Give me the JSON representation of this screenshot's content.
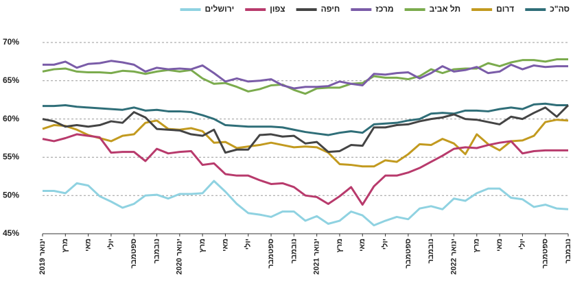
{
  "chart_data": {
    "type": "line",
    "categories": [
      "ינואר 2019",
      null,
      "מרץ",
      null,
      "מאי",
      null,
      "יולי",
      null,
      "ספטמבר",
      null,
      "נובמבר",
      null,
      "ינואר 2020",
      null,
      "מרץ",
      null,
      "מאי",
      null,
      "יולי",
      null,
      "ספטמבר",
      null,
      "נובמבר",
      null,
      "ינואר 2021",
      null,
      "מרץ",
      null,
      "מאי",
      null,
      "יולי",
      null,
      "ספטמבר",
      null,
      "נובמבר",
      null,
      "ינואר 2022",
      null,
      "מרץ",
      null,
      "מאי",
      null,
      "יולי",
      null,
      "ספטמבר",
      null,
      "נובמבר"
    ],
    "series": [
      {
        "name": "סה\"כ",
        "color": "#2f6e78",
        "values": [
          61.7,
          61.7,
          61.8,
          61.6,
          61.5,
          61.4,
          61.3,
          61.2,
          61.5,
          61.1,
          61.2,
          61.0,
          61.0,
          60.9,
          60.5,
          60.0,
          59.2,
          59.1,
          59.0,
          59.0,
          59.0,
          58.9,
          58.6,
          58.3,
          58.1,
          57.9,
          58.2,
          58.4,
          58.2,
          59.3,
          59.4,
          59.5,
          59.8,
          60.0,
          60.7,
          60.8,
          60.7,
          61.1,
          61.1,
          61.0,
          61.3,
          61.5,
          61.3,
          61.9,
          62.0,
          61.8,
          61.8
        ]
      },
      {
        "name": "דרום",
        "color": "#c29a1f",
        "values": [
          58.7,
          59.2,
          59.1,
          58.6,
          57.9,
          57.5,
          57.1,
          57.8,
          58.0,
          59.5,
          59.8,
          58.7,
          58.6,
          58.8,
          58.4,
          56.9,
          57.0,
          56.2,
          56.4,
          56.6,
          56.9,
          56.6,
          56.3,
          56.4,
          56.3,
          55.6,
          54.1,
          54.0,
          53.8,
          53.8,
          54.6,
          54.4,
          55.4,
          56.7,
          56.6,
          57.4,
          56.8,
          55.4,
          58.0,
          56.7,
          55.9,
          57.1,
          57.2,
          57.8,
          59.6,
          59.9,
          59.8
        ]
      },
      {
        "name": "תל אביב",
        "color": "#7bab4d",
        "values": [
          66.2,
          66.5,
          66.6,
          66.2,
          66.1,
          66.1,
          66.0,
          66.3,
          66.2,
          65.9,
          66.2,
          66.4,
          66.2,
          66.4,
          65.3,
          64.6,
          64.7,
          64.2,
          63.6,
          63.9,
          64.4,
          64.5,
          63.8,
          63.3,
          64.0,
          64.1,
          64.1,
          64.6,
          64.7,
          65.6,
          65.4,
          65.4,
          65.2,
          65.6,
          66.5,
          66.0,
          66.5,
          66.6,
          66.6,
          67.3,
          66.9,
          67.4,
          67.7,
          67.7,
          67.5,
          67.8,
          67.8
        ]
      },
      {
        "name": "מרכז",
        "color": "#7a5ca8",
        "values": [
          67.1,
          67.1,
          67.5,
          66.7,
          67.2,
          67.3,
          67.6,
          67.4,
          67.1,
          66.2,
          66.7,
          66.5,
          66.6,
          66.5,
          67.0,
          66.0,
          64.9,
          65.3,
          64.9,
          65.0,
          65.2,
          64.4,
          64.0,
          64.2,
          64.2,
          64.3,
          64.9,
          64.6,
          64.4,
          65.9,
          65.8,
          66.0,
          66.1,
          65.3,
          66.0,
          66.9,
          66.2,
          66.4,
          66.8,
          66.0,
          66.2,
          67.1,
          66.5,
          67.0,
          66.8,
          66.9,
          66.9
        ]
      },
      {
        "name": "חיפה",
        "color": "#444444",
        "values": [
          60.0,
          59.7,
          59.0,
          59.2,
          59.0,
          59.2,
          59.7,
          59.5,
          60.9,
          60.2,
          58.7,
          58.6,
          58.5,
          58.0,
          57.8,
          58.6,
          55.6,
          56.0,
          56.0,
          57.9,
          58.0,
          57.7,
          57.8,
          56.8,
          57.0,
          55.7,
          55.8,
          56.6,
          56.5,
          58.9,
          58.9,
          59.2,
          59.3,
          59.7,
          60.0,
          60.2,
          60.6,
          60.0,
          59.9,
          59.6,
          59.3,
          60.3,
          60.0,
          60.8,
          61.5,
          60.3,
          61.8
        ]
      },
      {
        "name": "צפון",
        "color": "#b83a6c",
        "values": [
          57.4,
          57.1,
          57.5,
          58.0,
          57.8,
          57.6,
          55.6,
          55.7,
          55.7,
          54.5,
          56.1,
          55.5,
          55.7,
          55.8,
          54.0,
          54.2,
          52.8,
          52.6,
          52.6,
          52.0,
          51.5,
          51.6,
          51.1,
          50.0,
          49.8,
          48.9,
          49.9,
          51.1,
          48.8,
          51.2,
          52.6,
          52.6,
          53.0,
          53.6,
          54.4,
          55.2,
          56.1,
          56.3,
          56.2,
          56.6,
          56.9,
          57.1,
          55.5,
          55.8,
          55.9,
          55.9,
          55.9
        ]
      },
      {
        "name": "ירושלים",
        "color": "#8fd2e1",
        "values": [
          50.6,
          50.6,
          50.3,
          51.6,
          51.3,
          49.9,
          49.2,
          48.4,
          48.9,
          50.0,
          50.1,
          49.6,
          50.2,
          50.2,
          50.3,
          51.9,
          50.5,
          48.9,
          47.7,
          47.5,
          47.2,
          47.9,
          47.9,
          46.7,
          47.3,
          46.3,
          46.7,
          47.9,
          47.4,
          46.1,
          46.7,
          47.2,
          46.9,
          48.3,
          48.6,
          48.2,
          49.6,
          49.3,
          50.3,
          50.9,
          50.9,
          49.7,
          49.5,
          48.5,
          48.8,
          48.3,
          48.2
        ]
      }
    ],
    "ylim": [
      45,
      70
    ],
    "yticks": [
      {
        "value": 45,
        "label": "45%"
      },
      {
        "value": 50,
        "label": "50%"
      },
      {
        "value": 55,
        "label": "55%"
      },
      {
        "value": 60,
        "label": "60%"
      },
      {
        "value": 65,
        "label": "65%"
      },
      {
        "value": 70,
        "label": "70%"
      }
    ],
    "grid": true
  }
}
